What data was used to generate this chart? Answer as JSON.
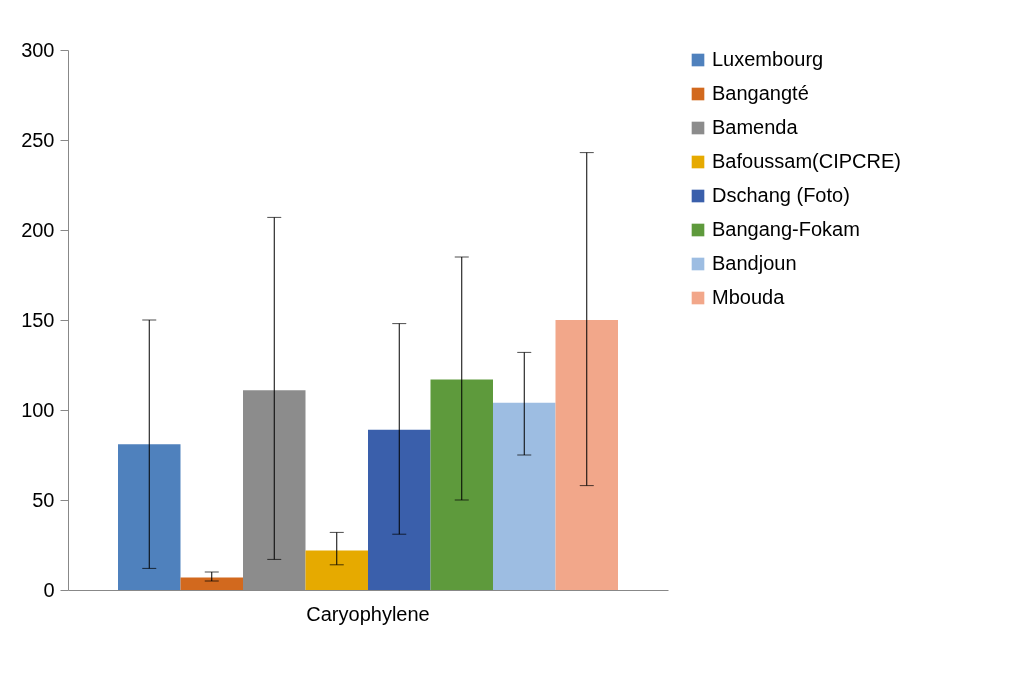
{
  "chart_data": {
    "type": "bar",
    "categories": [
      "Caryophylene"
    ],
    "series": [
      {
        "name": "Luxembourg",
        "color": "#4f81bd",
        "values": [
          81
        ],
        "errors": [
          [
            12,
            150
          ]
        ]
      },
      {
        "name": "Bangangté",
        "color": "#d2691e",
        "values": [
          7
        ],
        "errors": [
          [
            5,
            10
          ]
        ]
      },
      {
        "name": "Bamenda",
        "color": "#8c8c8c",
        "values": [
          111
        ],
        "errors": [
          [
            17,
            207
          ]
        ]
      },
      {
        "name": "Bafoussam(CIPCRE)",
        "color": "#e6aa00",
        "values": [
          22
        ],
        "errors": [
          [
            14,
            32
          ]
        ]
      },
      {
        "name": "Dschang (Foto)",
        "color": "#3a5fab",
        "values": [
          89
        ],
        "errors": [
          [
            31,
            148
          ]
        ]
      },
      {
        "name": "Bangang-Fokam",
        "color": "#5e9a3c",
        "values": [
          117
        ],
        "errors": [
          [
            50,
            185
          ]
        ]
      },
      {
        "name": "Bandjoun",
        "color": "#9dbde2",
        "values": [
          104
        ],
        "errors": [
          [
            75,
            132
          ]
        ]
      },
      {
        "name": "Mbouda",
        "color": "#f2a78a",
        "values": [
          150
        ],
        "errors": [
          [
            58,
            243
          ]
        ]
      }
    ],
    "ylim": [
      0,
      300
    ],
    "yticks": [
      0,
      50,
      100,
      150,
      200,
      250,
      300
    ],
    "grid": false,
    "legend": "right"
  }
}
